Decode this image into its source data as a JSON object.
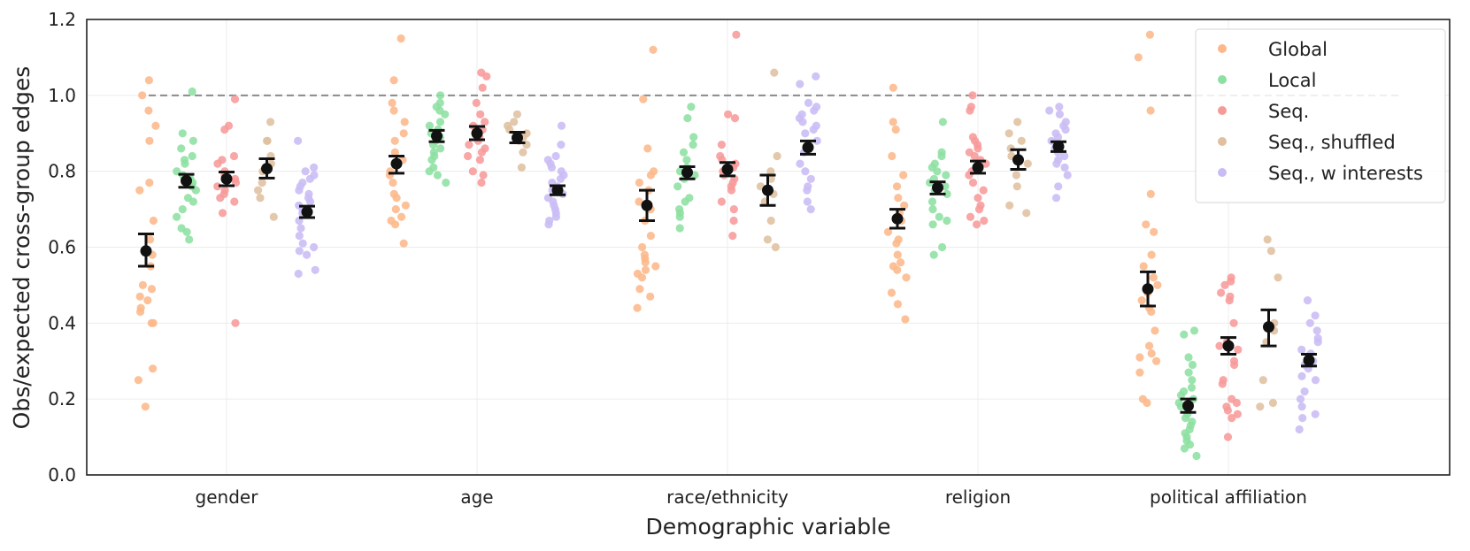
{
  "chart_data": {
    "type": "scatter",
    "title": "",
    "xlabel": "Demographic variable",
    "ylabel": "Obs/expected cross-group edges",
    "ylim": [
      0.0,
      1.2
    ],
    "yticks": [
      "0.0",
      "0.2",
      "0.4",
      "0.6",
      "0.8",
      "1.0",
      "1.2"
    ],
    "categories": [
      "gender",
      "age",
      "race/ethnicity",
      "religion",
      "political affiliation"
    ],
    "reference_line": 1.0,
    "grid": true,
    "legend_position": "top-right",
    "mean_marker_color": "#111111",
    "series": [
      {
        "name": "Global",
        "color": "#fcb88a",
        "points": [
          [
            1.04,
            1.0,
            0.96,
            0.92,
            0.88,
            0.77,
            0.75,
            0.67,
            0.62,
            0.58,
            0.55,
            0.5,
            0.49,
            0.47,
            0.46,
            0.44,
            0.43,
            0.4,
            0.4,
            0.28,
            0.25,
            0.18
          ],
          [
            1.15,
            1.04,
            0.98,
            0.96,
            0.93,
            0.9,
            0.88,
            0.85,
            0.83,
            0.8,
            0.79,
            0.77,
            0.74,
            0.73,
            0.71,
            0.7,
            0.68,
            0.67,
            0.66,
            0.61
          ],
          [
            1.12,
            0.99,
            0.86,
            0.8,
            0.79,
            0.77,
            0.75,
            0.72,
            0.7,
            0.67,
            0.63,
            0.6,
            0.58,
            0.57,
            0.56,
            0.55,
            0.54,
            0.53,
            0.52,
            0.49,
            0.47,
            0.44
          ],
          [
            1.02,
            0.93,
            0.91,
            0.84,
            0.79,
            0.76,
            0.73,
            0.71,
            0.69,
            0.67,
            0.64,
            0.62,
            0.61,
            0.58,
            0.56,
            0.55,
            0.54,
            0.52,
            0.48,
            0.45,
            0.41
          ],
          [
            1.16,
            1.1,
            0.96,
            0.74,
            0.66,
            0.64,
            0.58,
            0.55,
            0.52,
            0.5,
            0.48,
            0.46,
            0.44,
            0.43,
            0.38,
            0.34,
            0.32,
            0.31,
            0.3,
            0.27,
            0.2,
            0.19
          ]
        ],
        "mean": [
          0.59,
          0.82,
          0.71,
          0.675,
          0.49
        ],
        "ci": [
          [
            0.55,
            0.635
          ],
          [
            0.795,
            0.84
          ],
          [
            0.67,
            0.75
          ],
          [
            0.65,
            0.7
          ],
          [
            0.445,
            0.535
          ]
        ]
      },
      {
        "name": "Local",
        "color": "#8de0a2",
        "points": [
          [
            1.01,
            0.9,
            0.88,
            0.86,
            0.84,
            0.83,
            0.82,
            0.8,
            0.79,
            0.78,
            0.77,
            0.76,
            0.75,
            0.73,
            0.72,
            0.7,
            0.68,
            0.65,
            0.64,
            0.62
          ],
          [
            1.0,
            0.98,
            0.97,
            0.96,
            0.95,
            0.93,
            0.92,
            0.91,
            0.9,
            0.89,
            0.88,
            0.87,
            0.86,
            0.85,
            0.84,
            0.83,
            0.81,
            0.8,
            0.79,
            0.77
          ],
          [
            0.97,
            0.94,
            0.89,
            0.87,
            0.85,
            0.83,
            0.81,
            0.8,
            0.79,
            0.78,
            0.76,
            0.73,
            0.72,
            0.7,
            0.69,
            0.68,
            0.65
          ],
          [
            0.93,
            0.85,
            0.84,
            0.82,
            0.81,
            0.8,
            0.79,
            0.78,
            0.77,
            0.76,
            0.75,
            0.74,
            0.72,
            0.7,
            0.68,
            0.67,
            0.66,
            0.6,
            0.58
          ],
          [
            0.38,
            0.37,
            0.31,
            0.29,
            0.27,
            0.25,
            0.23,
            0.22,
            0.21,
            0.2,
            0.19,
            0.18,
            0.17,
            0.16,
            0.15,
            0.14,
            0.13,
            0.12,
            0.11,
            0.1,
            0.09,
            0.08,
            0.07,
            0.05
          ]
        ],
        "mean": [
          0.775,
          0.893,
          0.797,
          0.757,
          0.182
        ],
        "ci": [
          [
            0.758,
            0.792
          ],
          [
            0.878,
            0.908
          ],
          [
            0.78,
            0.812
          ],
          [
            0.74,
            0.772
          ],
          [
            0.165,
            0.2
          ]
        ]
      },
      {
        "name": "Seq.",
        "color": "#f79a9a",
        "points": [
          [
            0.99,
            0.92,
            0.91,
            0.84,
            0.83,
            0.82,
            0.8,
            0.79,
            0.78,
            0.77,
            0.76,
            0.75,
            0.74,
            0.73,
            0.72,
            0.69,
            0.4
          ],
          [
            1.06,
            1.05,
            1.02,
            0.98,
            0.95,
            0.93,
            0.92,
            0.91,
            0.9,
            0.89,
            0.88,
            0.87,
            0.86,
            0.85,
            0.84,
            0.83,
            0.8,
            0.79,
            0.77
          ],
          [
            1.16,
            0.95,
            0.94,
            0.87,
            0.84,
            0.83,
            0.82,
            0.81,
            0.8,
            0.79,
            0.78,
            0.77,
            0.76,
            0.75,
            0.72,
            0.7,
            0.67,
            0.63
          ],
          [
            1.0,
            0.97,
            0.96,
            0.89,
            0.88,
            0.87,
            0.86,
            0.85,
            0.84,
            0.83,
            0.82,
            0.8,
            0.79,
            0.77,
            0.75,
            0.73,
            0.71,
            0.7,
            0.68,
            0.67,
            0.66
          ],
          [
            0.52,
            0.51,
            0.5,
            0.48,
            0.47,
            0.46,
            0.4,
            0.35,
            0.34,
            0.33,
            0.3,
            0.29,
            0.25,
            0.24,
            0.2,
            0.19,
            0.18,
            0.17,
            0.16,
            0.15,
            0.1
          ]
        ],
        "mean": [
          0.78,
          0.9,
          0.805,
          0.81,
          0.34
        ],
        "ci": [
          [
            0.762,
            0.798
          ],
          [
            0.883,
            0.918
          ],
          [
            0.788,
            0.823
          ],
          [
            0.795,
            0.827
          ],
          [
            0.318,
            0.362
          ]
        ]
      },
      {
        "name": "Seq., shuffled",
        "color": "#dfc0a0",
        "points": [
          [
            0.93,
            0.88,
            0.88,
            0.84,
            0.82,
            0.8,
            0.77,
            0.75,
            0.73,
            0.68
          ],
          [
            0.95,
            0.93,
            0.92,
            0.91,
            0.9,
            0.89,
            0.88,
            0.87,
            0.85,
            0.81
          ],
          [
            1.06,
            0.84,
            0.8,
            0.78,
            0.76,
            0.74,
            0.72,
            0.67,
            0.62,
            0.6
          ],
          [
            0.93,
            0.9,
            0.88,
            0.86,
            0.84,
            0.82,
            0.79,
            0.76,
            0.71,
            0.69
          ],
          [
            0.62,
            0.59,
            0.52,
            0.4,
            0.38,
            0.35,
            0.25,
            0.19,
            0.18
          ]
        ],
        "mean": [
          0.807,
          0.888,
          0.75,
          0.83,
          0.39
        ],
        "ci": [
          [
            0.782,
            0.833
          ],
          [
            0.875,
            0.903
          ],
          [
            0.71,
            0.79
          ],
          [
            0.805,
            0.857
          ],
          [
            0.34,
            0.435
          ]
        ]
      },
      {
        "name": "Seq., w interests",
        "color": "#c9bcf5",
        "points": [
          [
            0.88,
            0.81,
            0.8,
            0.79,
            0.78,
            0.77,
            0.76,
            0.75,
            0.74,
            0.73,
            0.72,
            0.71,
            0.7,
            0.69,
            0.67,
            0.65,
            0.63,
            0.61,
            0.6,
            0.59,
            0.58,
            0.54,
            0.53
          ],
          [
            0.92,
            0.87,
            0.84,
            0.83,
            0.82,
            0.81,
            0.8,
            0.79,
            0.78,
            0.77,
            0.76,
            0.75,
            0.74,
            0.73,
            0.72,
            0.71,
            0.7,
            0.69,
            0.68,
            0.67,
            0.66
          ],
          [
            1.05,
            1.03,
            0.98,
            0.97,
            0.96,
            0.95,
            0.94,
            0.93,
            0.92,
            0.91,
            0.9,
            0.88,
            0.85,
            0.82,
            0.8,
            0.78,
            0.76,
            0.75,
            0.72,
            0.7
          ],
          [
            0.97,
            0.96,
            0.95,
            0.93,
            0.92,
            0.91,
            0.9,
            0.89,
            0.88,
            0.87,
            0.86,
            0.85,
            0.84,
            0.83,
            0.82,
            0.81,
            0.79,
            0.76,
            0.73
          ],
          [
            0.46,
            0.42,
            0.4,
            0.38,
            0.36,
            0.35,
            0.33,
            0.32,
            0.3,
            0.29,
            0.28,
            0.26,
            0.25,
            0.22,
            0.2,
            0.18,
            0.16,
            0.15,
            0.12
          ]
        ],
        "mean": [
          0.693,
          0.75,
          0.863,
          0.865,
          0.302
        ],
        "ci": [
          [
            0.678,
            0.708
          ],
          [
            0.738,
            0.762
          ],
          [
            0.845,
            0.88
          ],
          [
            0.852,
            0.878
          ],
          [
            0.287,
            0.318
          ]
        ]
      }
    ]
  }
}
